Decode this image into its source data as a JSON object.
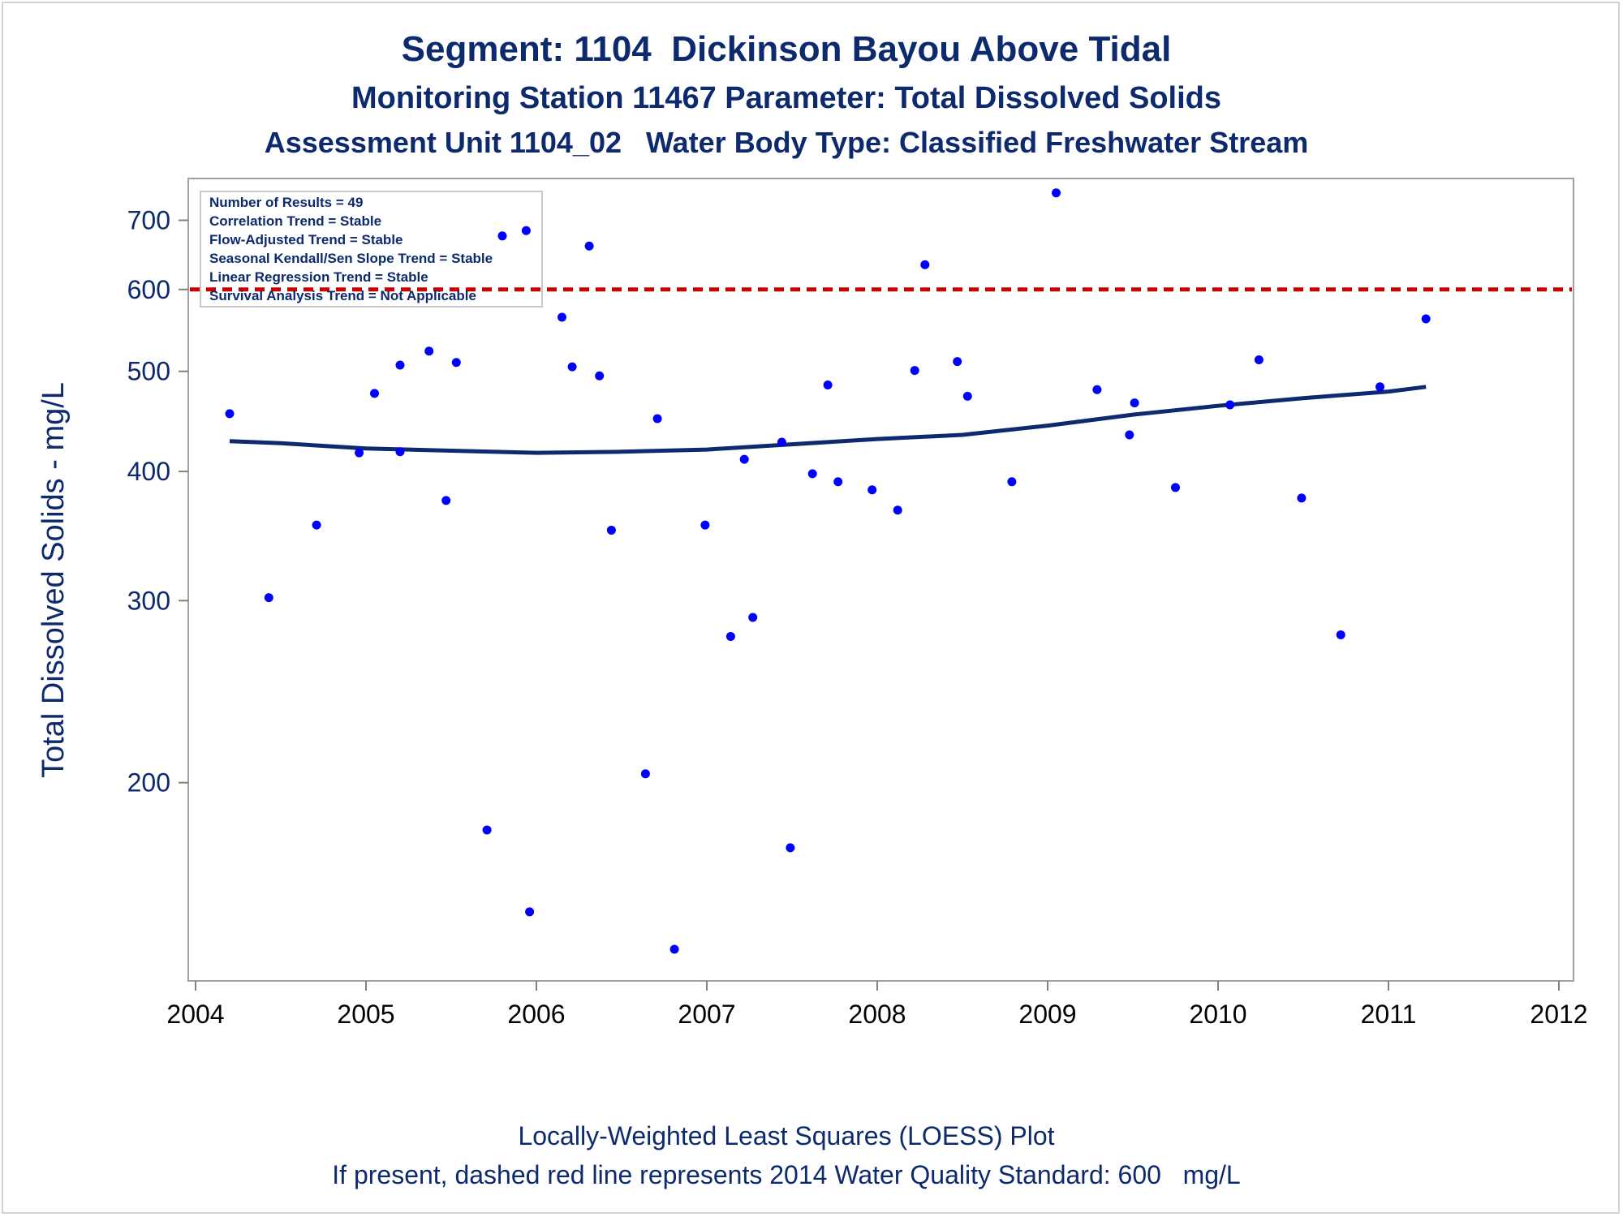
{
  "chart_data": {
    "type": "scatter",
    "title": "Segment: 1104  Dickinson Bayou Above Tidal",
    "subtitle": "Monitoring Station 11467 Parameter: Total Dissolved Solids",
    "subtitle2": "Assessment Unit 1104_02   Water Body Type: Classified Freshwater Stream",
    "ylabel": "Total Dissolved Solids - mg/L",
    "footnote1": "Locally-Weighted Least Squares (LOESS) Plot",
    "footnote2": "If present, dashed red line represents 2014 Water Quality Standard: 600   mg/L",
    "y_scale": "log",
    "xlim": [
      2004,
      2012
    ],
    "ylim": [
      130,
      760
    ],
    "x_ticks": [
      "2004",
      "2005",
      "2006",
      "2007",
      "2008",
      "2009",
      "2010",
      "2011",
      "2012"
    ],
    "y_ticks": [
      "200",
      "300",
      "400",
      "500",
      "600",
      "700"
    ],
    "grid": false,
    "standard_line": {
      "value": 600,
      "color": "#cc0000",
      "style": "dashed"
    },
    "annotations": [
      "Number of Results = 49",
      "Correlation Trend = Stable",
      "Flow-Adjusted Trend = Stable",
      "Seasonal Kendall/Sen Slope Trend = Stable",
      "Linear Regression Trend = Stable",
      "Survival Analysis Trend = Not Applicable"
    ],
    "annotation_placement": "top-left",
    "points_color": "#0000ff",
    "loess_color": "#0d2a6e",
    "points": [
      {
        "x": 2004.2,
        "y": 455
      },
      {
        "x": 2004.43,
        "y": 302
      },
      {
        "x": 2004.71,
        "y": 355
      },
      {
        "x": 2004.96,
        "y": 417
      },
      {
        "x": 2005.05,
        "y": 476
      },
      {
        "x": 2005.2,
        "y": 418
      },
      {
        "x": 2005.2,
        "y": 507
      },
      {
        "x": 2005.37,
        "y": 523
      },
      {
        "x": 2005.47,
        "y": 375
      },
      {
        "x": 2005.53,
        "y": 510
      },
      {
        "x": 2005.71,
        "y": 180
      },
      {
        "x": 2005.8,
        "y": 676
      },
      {
        "x": 2005.94,
        "y": 684
      },
      {
        "x": 2005.96,
        "y": 150
      },
      {
        "x": 2006.15,
        "y": 564
      },
      {
        "x": 2006.21,
        "y": 505
      },
      {
        "x": 2006.31,
        "y": 661
      },
      {
        "x": 2006.37,
        "y": 495
      },
      {
        "x": 2006.44,
        "y": 351
      },
      {
        "x": 2006.64,
        "y": 204
      },
      {
        "x": 2006.71,
        "y": 450
      },
      {
        "x": 2006.81,
        "y": 138
      },
      {
        "x": 2006.99,
        "y": 355
      },
      {
        "x": 2007.14,
        "y": 277
      },
      {
        "x": 2007.22,
        "y": 411
      },
      {
        "x": 2007.27,
        "y": 289
      },
      {
        "x": 2007.44,
        "y": 427
      },
      {
        "x": 2007.49,
        "y": 173
      },
      {
        "x": 2007.62,
        "y": 398
      },
      {
        "x": 2007.71,
        "y": 485
      },
      {
        "x": 2007.77,
        "y": 391
      },
      {
        "x": 2007.97,
        "y": 384
      },
      {
        "x": 2008.12,
        "y": 367
      },
      {
        "x": 2008.22,
        "y": 501
      },
      {
        "x": 2008.28,
        "y": 634
      },
      {
        "x": 2008.47,
        "y": 511
      },
      {
        "x": 2008.53,
        "y": 473
      },
      {
        "x": 2008.79,
        "y": 391
      },
      {
        "x": 2009.05,
        "y": 744
      },
      {
        "x": 2009.29,
        "y": 480
      },
      {
        "x": 2009.48,
        "y": 434
      },
      {
        "x": 2009.51,
        "y": 466
      },
      {
        "x": 2009.75,
        "y": 386
      },
      {
        "x": 2010.07,
        "y": 464
      },
      {
        "x": 2010.24,
        "y": 513
      },
      {
        "x": 2010.49,
        "y": 377
      },
      {
        "x": 2010.72,
        "y": 278
      },
      {
        "x": 2010.95,
        "y": 483
      },
      {
        "x": 2011.22,
        "y": 562
      }
    ],
    "loess": [
      {
        "x": 2004.2,
        "y": 428
      },
      {
        "x": 2004.5,
        "y": 426
      },
      {
        "x": 2005.0,
        "y": 421
      },
      {
        "x": 2005.5,
        "y": 419
      },
      {
        "x": 2006.0,
        "y": 417
      },
      {
        "x": 2006.5,
        "y": 418
      },
      {
        "x": 2007.0,
        "y": 420
      },
      {
        "x": 2007.5,
        "y": 425
      },
      {
        "x": 2008.0,
        "y": 430
      },
      {
        "x": 2008.5,
        "y": 434
      },
      {
        "x": 2009.0,
        "y": 443
      },
      {
        "x": 2009.5,
        "y": 454
      },
      {
        "x": 2010.0,
        "y": 463
      },
      {
        "x": 2010.5,
        "y": 471
      },
      {
        "x": 2011.0,
        "y": 478
      },
      {
        "x": 2011.22,
        "y": 483
      }
    ]
  }
}
